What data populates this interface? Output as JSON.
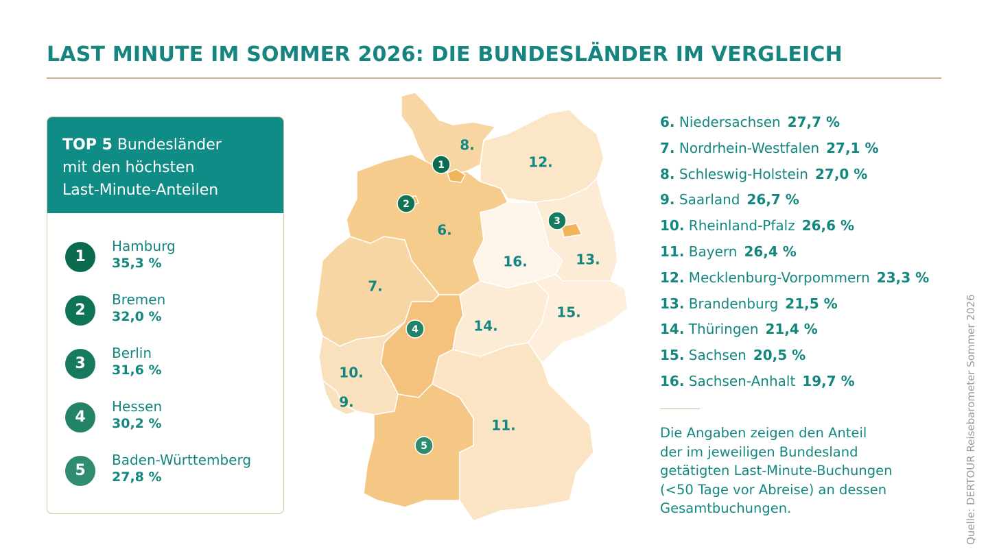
{
  "header": {
    "title": "LAST MINUTE IM SOMMER 2026: DIE BUNDESLÄNDER IM VERGLEICH"
  },
  "top5": {
    "heading_bold": "TOP 5",
    "heading_lines": [
      "Bundesländer",
      "mit den höchsten",
      "Last-Minute-Anteilen"
    ],
    "items": [
      {
        "rank": "1",
        "name": "Hamburg",
        "value": "35,3 %"
      },
      {
        "rank": "2",
        "name": "Bremen",
        "value": "32,0 %"
      },
      {
        "rank": "3",
        "name": "Berlin",
        "value": "31,6 %"
      },
      {
        "rank": "4",
        "name": "Hessen",
        "value": "30,2 %"
      },
      {
        "rank": "5",
        "name": "Baden-Württemberg",
        "value": "27,8 %"
      }
    ]
  },
  "ranking": [
    {
      "rank": "6.",
      "name": "Niedersachsen",
      "value": "27,7 %"
    },
    {
      "rank": "7.",
      "name": "Nordrhein-Westfalen",
      "value": "27,1 %"
    },
    {
      "rank": "8.",
      "name": "Schleswig-Holstein",
      "value": "27,0 %"
    },
    {
      "rank": "9.",
      "name": "Saarland",
      "value": "26,7 %"
    },
    {
      "rank": "10.",
      "name": "Rheinland-Pfalz",
      "value": "26,6 %"
    },
    {
      "rank": "11.",
      "name": "Bayern",
      "value": "26,4 %"
    },
    {
      "rank": "12.",
      "name": "Mecklenburg-Vorpommern",
      "value": "23,3 %"
    },
    {
      "rank": "13.",
      "name": "Brandenburg",
      "value": "21,5 %"
    },
    {
      "rank": "14.",
      "name": "Thüringen",
      "value": "21,4 %"
    },
    {
      "rank": "15.",
      "name": "Sachsen",
      "value": "20,5 %"
    },
    {
      "rank": "16.",
      "name": "Sachsen-Anhalt",
      "value": "19,7 %"
    }
  ],
  "note_lines": [
    "Die Angaben zeigen den Anteil",
    "der im jeweiligen Bundesland",
    "getätigten Last-Minute-Buchungen",
    "(<50 Tage vor Abreise) an dessen",
    "Gesamtbuchungen."
  ],
  "source": "Quelle: DERTOUR Reisebarometer Sommer 2026"
}
